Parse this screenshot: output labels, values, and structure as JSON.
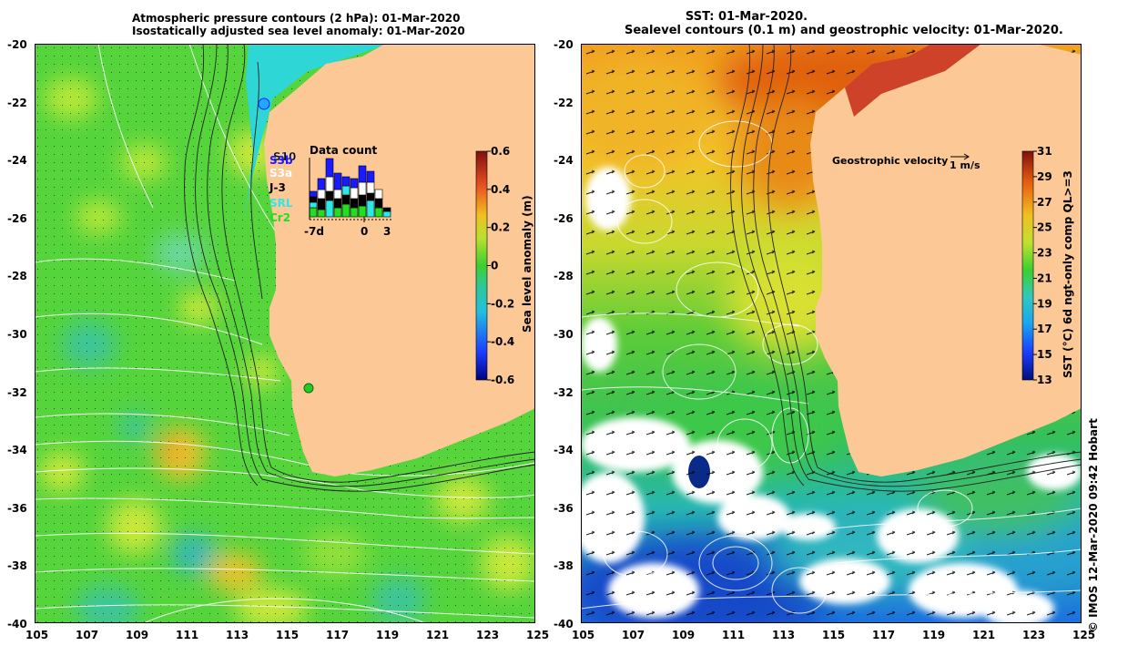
{
  "left_panel": {
    "title_line1": "Atmospheric pressure contours (2 hPa): 01-Mar-2020",
    "title_line2": "Isostatically adjusted sea level anomaly: 01-Mar-2020",
    "colorbar_label": "Sea level anomaly (m)",
    "colorbar_ticks": [
      "0.6",
      "0.4",
      "0.2",
      "0",
      "-0.2",
      "-0.4",
      "-0.6"
    ],
    "data_count": {
      "title": "Data count",
      "satellites": [
        {
          "name": "S10",
          "color": "#000000"
        },
        {
          "name": "S3b",
          "color": "#1a1aff"
        },
        {
          "name": "S3a",
          "color": "#ffffff"
        },
        {
          "name": "J-3",
          "color": "#000000"
        },
        {
          "name": "SRL",
          "color": "#2ee8e8"
        },
        {
          "name": "Cr2",
          "color": "#22dd22"
        }
      ],
      "axis_labels": [
        "-7d",
        "0",
        "3"
      ]
    }
  },
  "right_panel": {
    "title_line1": "SST: 01-Mar-2020.",
    "title_line2": "Sealevel contours (0.1 m) and geostrophic velocity: 01-Mar-2020.",
    "velocity_label": "Geostrophic velocity",
    "velocity_scale": "1 m/s",
    "colorbar_label": "SST (°C) 6d ngt-only comp QL>=3",
    "colorbar_ticks": [
      "31",
      "29",
      "27",
      "25",
      "23",
      "21",
      "19",
      "17",
      "15",
      "13"
    ]
  },
  "axes": {
    "x_ticks": [
      "105",
      "107",
      "109",
      "111",
      "113",
      "115",
      "117",
      "119",
      "121",
      "123",
      "125"
    ],
    "y_ticks": [
      "-20",
      "-22",
      "-24",
      "-26",
      "-28",
      "-30",
      "-32",
      "-34",
      "-36",
      "-38",
      "-40"
    ]
  },
  "credit": "© IMOS 12-Mar-2020 09:42 Hobart",
  "colors": {
    "land": "#fcc896",
    "sla_background": "#4fd43a",
    "sst_background": "#3cc84a"
  }
}
